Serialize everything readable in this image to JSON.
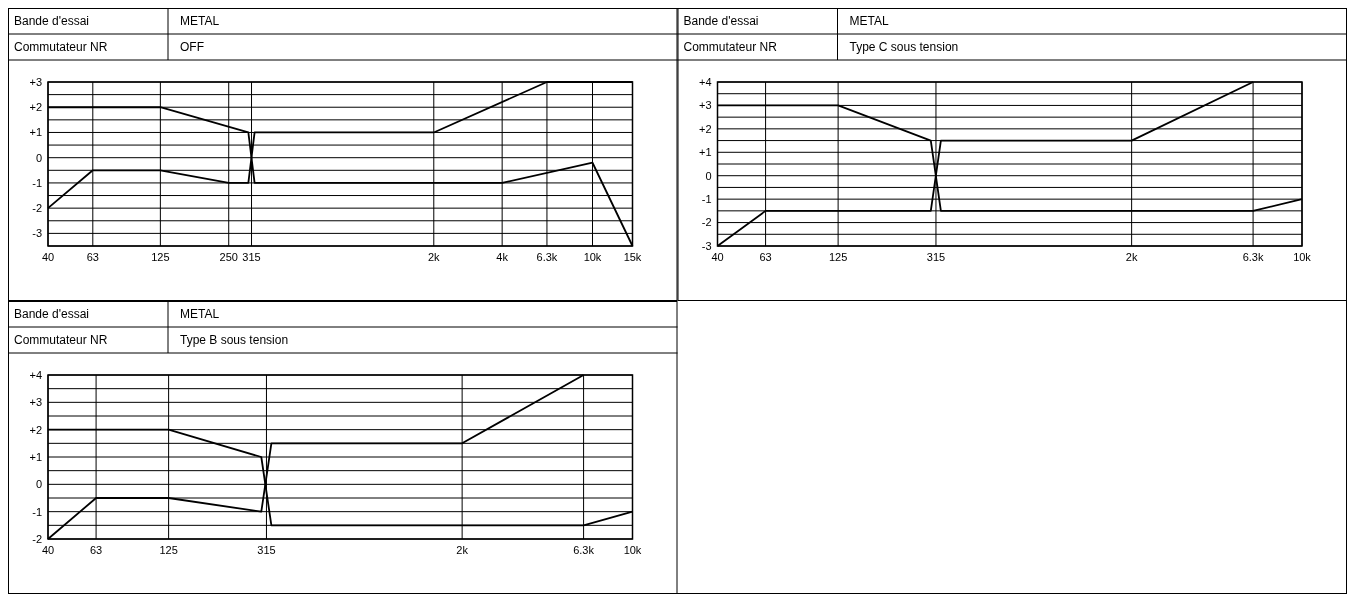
{
  "chart_data": [
    {
      "type": "line",
      "annotations": [
        "Bande d'essai",
        "METAL",
        "Commutateur NR",
        "OFF"
      ],
      "log": "x",
      "grid": true,
      "xlim": [
        40,
        15000
      ],
      "ylim": [
        -3.5,
        3
      ],
      "xticks": [
        40,
        63,
        125,
        250,
        315,
        {
          "value": 2000,
          "label": "2k"
        },
        {
          "value": 4000,
          "label": "4k"
        },
        {
          "value": 6300,
          "label": "6.3k"
        },
        {
          "value": 10000,
          "label": "10k"
        },
        {
          "value": 15000,
          "label": "15k"
        }
      ],
      "yticks": [
        {
          "value": -3.5,
          "label": null
        },
        {
          "value": -3,
          "label": "-3"
        },
        {
          "value": -2.5,
          "label": null
        },
        {
          "value": -2,
          "label": "-2"
        },
        {
          "value": -1.5,
          "label": null
        },
        {
          "value": -1,
          "label": "-1"
        },
        {
          "value": -0.5,
          "label": null
        },
        {
          "value": 0,
          "label": "0"
        },
        {
          "value": 0.5,
          "label": null
        },
        {
          "value": 1,
          "label": "+1"
        },
        {
          "value": 1.5,
          "label": null
        },
        {
          "value": 2,
          "label": "+2"
        },
        {
          "value": 2.5,
          "label": null
        },
        {
          "value": 3,
          "label": "+3"
        }
      ],
      "series": [
        {
          "color": "#000000",
          "x": [
            40,
            125,
            305,
            325,
            4000,
            10000,
            15000
          ],
          "values": [
            2,
            2,
            1,
            -1,
            -1,
            -0.2,
            -3.5
          ]
        },
        {
          "color": "#000000",
          "x": [
            40,
            63,
            125,
            250,
            305,
            325,
            2000,
            6300,
            15000
          ],
          "values": [
            -2,
            -0.5,
            -0.5,
            -1,
            -1,
            1,
            1,
            3,
            3
          ]
        }
      ]
    },
    {
      "type": "line",
      "annotations": [
        "Bande d'essai",
        "METAL",
        "Commutateur NR",
        "Type C sous tension"
      ],
      "log": "x",
      "grid": true,
      "xlim": [
        40,
        10000
      ],
      "ylim": [
        -3,
        4
      ],
      "xticks": [
        40,
        63,
        125,
        315,
        {
          "value": 2000,
          "label": "2k"
        },
        {
          "value": 6300,
          "label": "6.3k"
        },
        {
          "value": 10000,
          "label": "10k"
        }
      ],
      "yticks": [
        {
          "value": -3,
          "label": "-3"
        },
        {
          "value": -2.5,
          "label": null
        },
        {
          "value": -2,
          "label": "-2"
        },
        {
          "value": -1.5,
          "label": null
        },
        {
          "value": -1,
          "label": "-1"
        },
        {
          "value": -0.5,
          "label": null
        },
        {
          "value": 0,
          "label": "0"
        },
        {
          "value": 0.5,
          "label": null
        },
        {
          "value": 1,
          "label": "+1"
        },
        {
          "value": 1.5,
          "label": null
        },
        {
          "value": 2,
          "label": "+2"
        },
        {
          "value": 2.5,
          "label": null
        },
        {
          "value": 3,
          "label": "+3"
        },
        {
          "value": 3.5,
          "label": null
        },
        {
          "value": 4,
          "label": "+4"
        }
      ],
      "series": [
        {
          "color": "#000000",
          "x": [
            40,
            125,
            300,
            330,
            6300,
            10000
          ],
          "values": [
            3,
            3,
            1.5,
            -1.5,
            -1.5,
            -1
          ]
        },
        {
          "color": "#000000",
          "x": [
            40,
            63,
            300,
            330,
            2000,
            6300
          ],
          "values": [
            -3,
            -1.5,
            -1.5,
            1.5,
            1.5,
            4
          ]
        }
      ]
    },
    {
      "type": "line",
      "annotations": [
        "Bande d'essai",
        "METAL",
        "Commutateur NR",
        "Type B sous tension"
      ],
      "log": "x",
      "grid": true,
      "xlim": [
        40,
        10000
      ],
      "ylim": [
        -2,
        4
      ],
      "xticks": [
        40,
        63,
        125,
        315,
        {
          "value": 2000,
          "label": "2k"
        },
        {
          "value": 6300,
          "label": "6.3k"
        },
        {
          "value": 10000,
          "label": "10k"
        }
      ],
      "yticks": [
        {
          "value": -2,
          "label": "-2"
        },
        {
          "value": -1.5,
          "label": null
        },
        {
          "value": -1,
          "label": "-1"
        },
        {
          "value": -0.5,
          "label": null
        },
        {
          "value": 0,
          "label": "0"
        },
        {
          "value": 0.5,
          "label": null
        },
        {
          "value": 1,
          "label": "+1"
        },
        {
          "value": 1.5,
          "label": null
        },
        {
          "value": 2,
          "label": "+2"
        },
        {
          "value": 2.5,
          "label": null
        },
        {
          "value": 3,
          "label": "+3"
        },
        {
          "value": 3.5,
          "label": null
        },
        {
          "value": 4,
          "label": "+4"
        }
      ],
      "series": [
        {
          "color": "#000000",
          "x": [
            40,
            125,
            300,
            330,
            6300,
            10000
          ],
          "values": [
            2,
            2,
            1,
            -1.5,
            -1.5,
            -1
          ]
        },
        {
          "color": "#000000",
          "x": [
            40,
            63,
            125,
            300,
            330,
            2000,
            6300
          ],
          "values": [
            -2,
            -0.5,
            -0.5,
            -1,
            1.5,
            1.5,
            4
          ]
        }
      ]
    }
  ]
}
